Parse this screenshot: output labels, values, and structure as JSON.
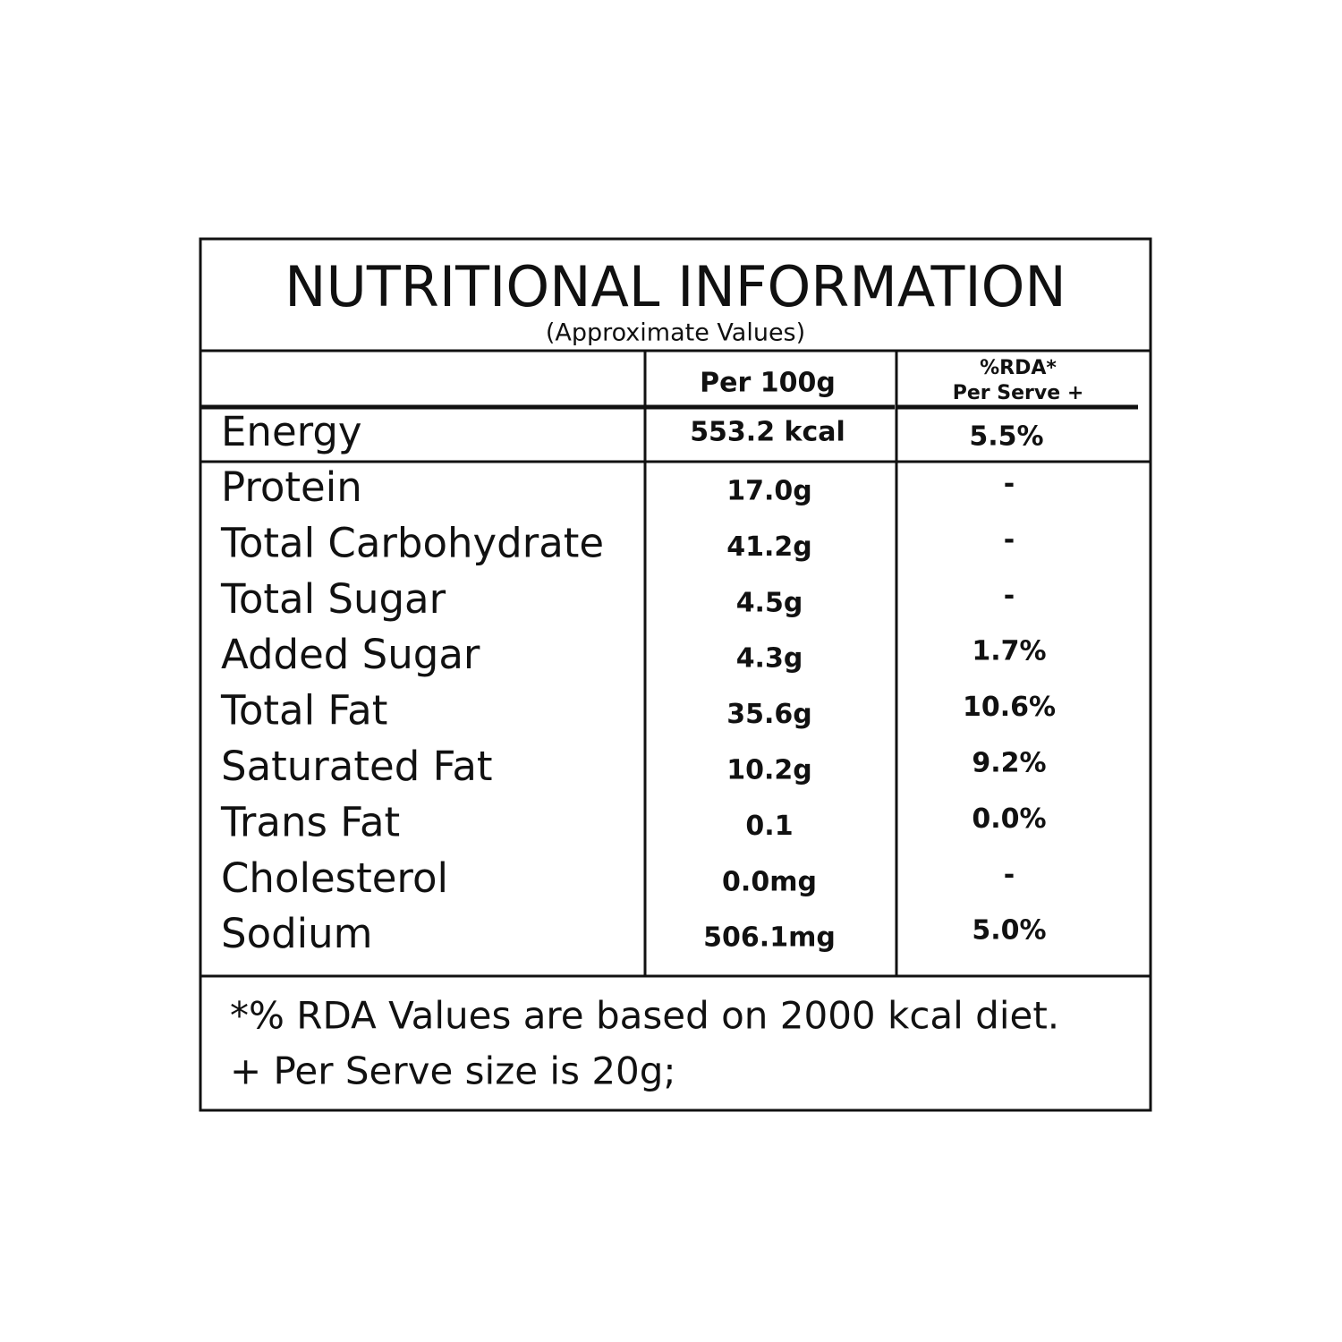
{
  "header": {
    "title": "NUTRITIONAL INFORMATION",
    "subtitle": "(Approximate Values)"
  },
  "table": {
    "columns": [
      "Per 100g",
      "%RDA*",
      "Per Serve +"
    ],
    "energy": [
      "Energy",
      "553.2 kcal",
      "5.5%"
    ],
    "rows": [
      [
        "Protein",
        "17.0g",
        "-"
      ],
      [
        "Total Carbohydrate",
        "41.2g",
        "-"
      ],
      [
        "Total Sugar",
        "4.5g",
        "-"
      ],
      [
        "Added Sugar",
        "4.3g",
        "1.7%"
      ],
      [
        "Total Fat",
        "35.6g",
        "10.6%"
      ],
      [
        "Saturated Fat",
        "10.2g",
        "9.2%"
      ],
      [
        "Trans Fat",
        "0.1",
        "0.0%"
      ],
      [
        "Cholesterol",
        "0.0mg",
        "-"
      ],
      [
        "Sodium",
        "506.1mg",
        "5.0%"
      ]
    ]
  },
  "footer": {
    "notes": [
      "*% RDA Values are based on 2000 kcal diet.",
      "+ Per Serve size is 20g;"
    ]
  }
}
